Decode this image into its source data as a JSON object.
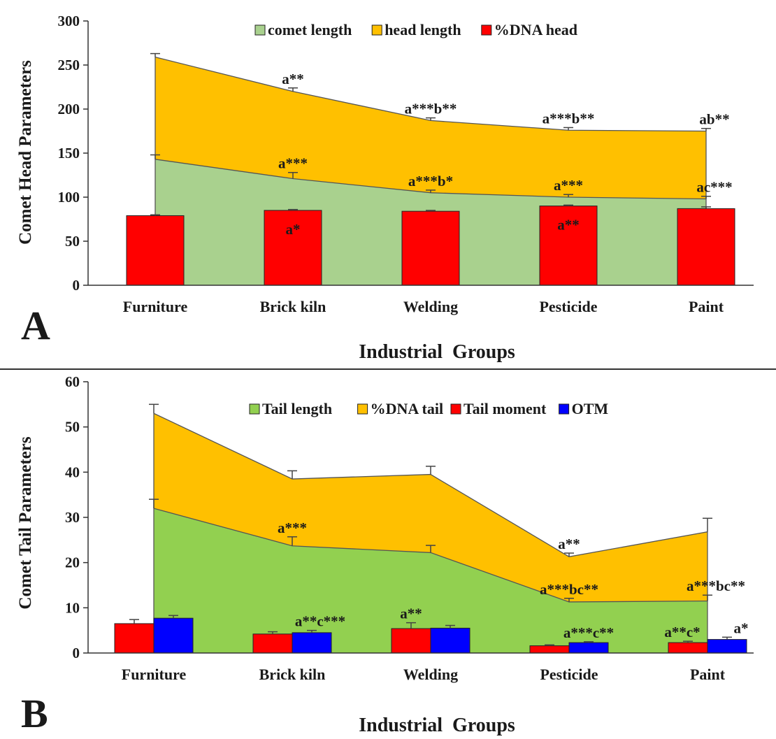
{
  "chart_data": [
    {
      "panel_label": "A",
      "type": "area",
      "ylabel": "Comet Head Parameters",
      "xlabel": "Industrial  Groups",
      "ylim": [
        0,
        300
      ],
      "yticks": [
        0,
        50,
        100,
        150,
        200,
        250,
        300
      ],
      "categories": [
        "Furniture",
        "Brick kiln",
        "Welding",
        "Pesticide",
        "Paint"
      ],
      "legend": [
        "comet length",
        "head length",
        "%DNA head"
      ],
      "series": [
        {
          "name": "head length",
          "type": "area",
          "color": "#FFC000",
          "values": [
            259,
            220,
            187,
            176,
            175
          ],
          "errors": [
            4,
            4,
            3,
            3,
            3
          ],
          "annotations": [
            "",
            "a**",
            "a***b**",
            "a***b**",
            "ab**"
          ]
        },
        {
          "name": "comet length",
          "type": "area",
          "color": "#A9D18E",
          "values": [
            143,
            121,
            105,
            100,
            98
          ],
          "errors": [
            5,
            7,
            3,
            3,
            3
          ],
          "annotations": [
            "",
            "a***",
            "a***b*",
            "a***",
            "ac***"
          ]
        },
        {
          "name": "%DNA head",
          "type": "bar",
          "color": "#FF0000",
          "values": [
            79,
            85,
            84,
            90,
            87
          ],
          "errors": [
            1,
            1,
            1,
            1,
            2
          ],
          "annotations": [
            "",
            "a*",
            "",
            "a**",
            ""
          ]
        }
      ]
    },
    {
      "panel_label": "B",
      "type": "area",
      "ylabel": "Comet Tail Parameters",
      "xlabel": "Industrial  Groups",
      "ylim": [
        0,
        60
      ],
      "yticks": [
        0,
        10,
        20,
        30,
        40,
        50,
        60
      ],
      "categories": [
        "Furniture",
        "Brick kiln",
        "Welding",
        "Pesticide",
        "Paint"
      ],
      "legend": [
        "Tail length",
        "%DNA tail",
        "Tail moment",
        "OTM"
      ],
      "series": [
        {
          "name": "%DNA tail",
          "type": "area",
          "color": "#FFC000",
          "values": [
            53,
            38.5,
            39.5,
            21.3,
            26.8
          ],
          "errors": [
            2,
            1.8,
            1.8,
            0.8,
            3
          ],
          "annotations": [
            "",
            "",
            "",
            "a**",
            ""
          ]
        },
        {
          "name": "Tail length",
          "type": "area",
          "color": "#92D050",
          "values": [
            32,
            23.7,
            22.2,
            11.3,
            11.5
          ],
          "errors": [
            2,
            2,
            1.6,
            0.8,
            1.3
          ],
          "annotations": [
            "",
            "a***",
            "",
            "a***bc**",
            "a***bc**"
          ]
        },
        {
          "name": "Tail moment",
          "type": "bar",
          "color": "#FF0000",
          "values": [
            6.5,
            4.2,
            5.4,
            1.6,
            2.3
          ],
          "errors": [
            0.9,
            0.5,
            1.3,
            0.2,
            0.3
          ],
          "annotations": [
            "",
            "",
            "a**",
            "",
            "a**c*"
          ]
        },
        {
          "name": "OTM",
          "type": "bar",
          "color": "#0000FF",
          "values": [
            7.7,
            4.5,
            5.5,
            2.3,
            3.0
          ],
          "errors": [
            0.6,
            0.5,
            0.6,
            0.2,
            0.5
          ],
          "annotations": [
            "",
            "a**c***",
            "",
            "a***c**",
            "a*"
          ]
        }
      ]
    }
  ]
}
